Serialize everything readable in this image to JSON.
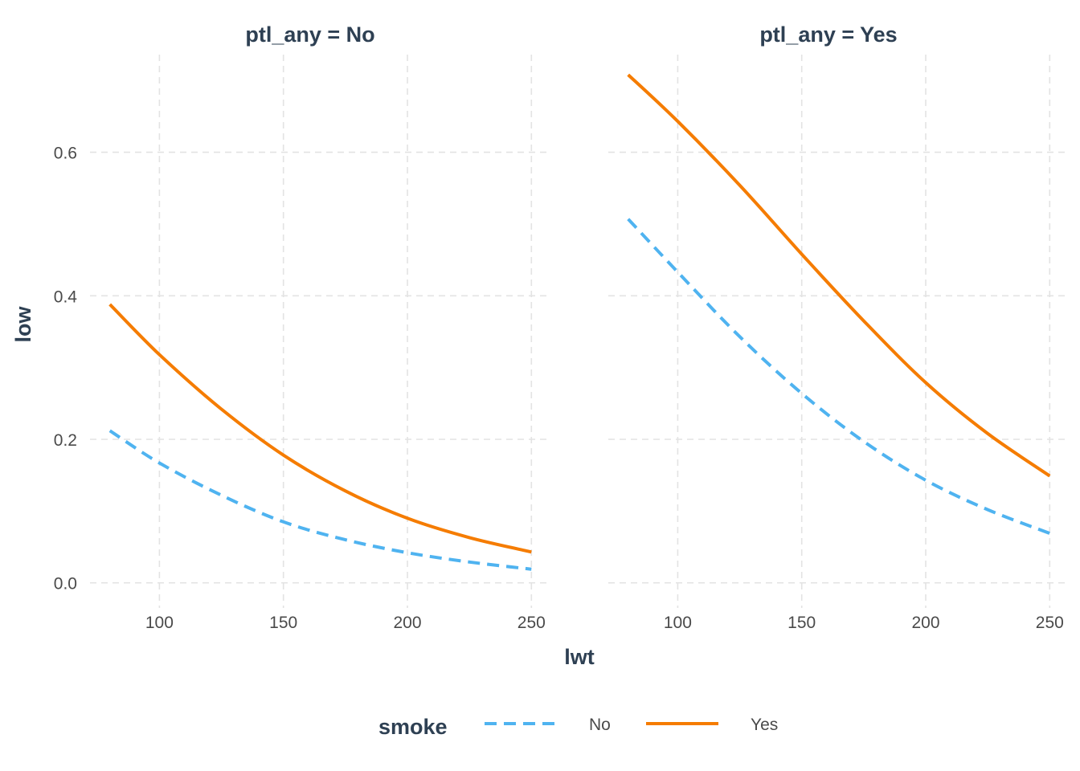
{
  "chart_data": {
    "type": "line",
    "facet_variable": "ptl_any",
    "panels": [
      {
        "strip_label": "ptl_any = No",
        "series": [
          {
            "name": "No",
            "x": [
              80,
              100,
              125,
              150,
              175,
              200,
              225,
              250
            ],
            "y": [
              0.212,
              0.167,
              0.122,
              0.085,
              0.06,
              0.042,
              0.029,
              0.019
            ]
          },
          {
            "name": "Yes",
            "x": [
              80,
              100,
              125,
              150,
              175,
              200,
              225,
              250
            ],
            "y": [
              0.388,
              0.318,
              0.242,
              0.178,
              0.128,
              0.09,
              0.063,
              0.043
            ]
          }
        ]
      },
      {
        "strip_label": "ptl_any = Yes",
        "series": [
          {
            "name": "No",
            "x": [
              80,
              100,
              125,
              150,
              175,
              200,
              225,
              250
            ],
            "y": [
              0.507,
              0.433,
              0.343,
              0.264,
              0.197,
              0.143,
              0.102,
              0.069
            ]
          },
          {
            "name": "Yes",
            "x": [
              80,
              100,
              125,
              150,
              175,
              200,
              225,
              250
            ],
            "y": [
              0.708,
              0.643,
              0.554,
              0.458,
              0.365,
              0.279,
              0.208,
              0.149
            ]
          }
        ]
      }
    ],
    "xlabel": "lwt",
    "ylabel": "low",
    "x_ticks": [
      100,
      150,
      200,
      250
    ],
    "y_ticks": [
      0.0,
      0.2,
      0.4,
      0.6
    ],
    "y_tick_labels": [
      "0.0",
      "0.2",
      "0.4",
      "0.6"
    ],
    "xlim": [
      72,
      258
    ],
    "ylim": [
      -0.035,
      0.745
    ],
    "grid": true,
    "legend": {
      "title": "smoke",
      "position": "bottom",
      "entries": [
        {
          "label": "No",
          "color": "#4FB3F0",
          "linestyle": "dashed"
        },
        {
          "label": "Yes",
          "color": "#F57C00",
          "linestyle": "solid"
        }
      ]
    }
  }
}
